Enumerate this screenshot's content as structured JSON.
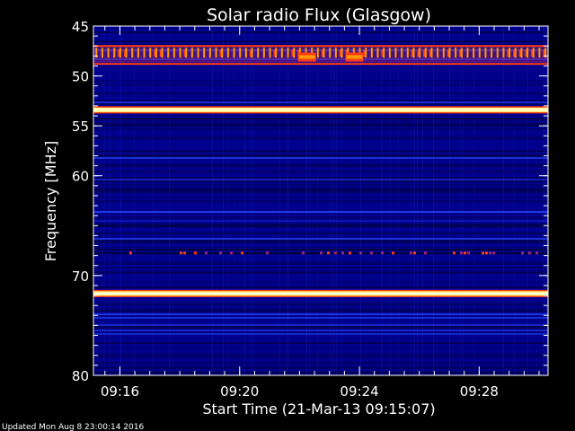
{
  "chart_data": {
    "type": "heatmap",
    "title": "Solar radio Flux (Glasgow)",
    "xlabel": "Start Time (21-Mar-13 09:15:07)",
    "ylabel": "Frequency [MHz]",
    "ylim_mhz": [
      45,
      80
    ],
    "y_axis_inverted": true,
    "y_ticks": [
      "45",
      "50",
      "55",
      "60",
      "70",
      "80"
    ],
    "x_range": [
      "09:15:07",
      "09:30:18"
    ],
    "x_ticks": [
      "09:16",
      "09:20",
      "09:24",
      "09:28"
    ],
    "background_intensity": "low (dark blue)",
    "emission_bands": [
      {
        "freq_low_mhz": 47.0,
        "freq_high_mhz": 48.8,
        "intensity": "high",
        "pattern": "periodic spikes (~every 12 s)"
      },
      {
        "freq_mhz": 53.4,
        "intensity": "very high",
        "pattern": "continuous line"
      },
      {
        "freq_mhz": 67.7,
        "intensity": "medium",
        "pattern": "intermittent"
      },
      {
        "freq_mhz": 71.8,
        "intensity": "very high",
        "pattern": "continuous line"
      }
    ],
    "bursts": [
      {
        "time": "09:22:15",
        "freq_mhz": 48.1,
        "intensity": "high"
      },
      {
        "time": "09:23:50",
        "freq_mhz": 48.1,
        "intensity": "high"
      }
    ],
    "colormap": [
      "#000040",
      "#00008c",
      "#3050ff",
      "#a0287a",
      "#ff3c14",
      "#ff9a00",
      "#ffff80",
      "#ffffe0"
    ]
  },
  "footer": {
    "updated": "Updated Mon Aug  8 23:00:14 2016"
  }
}
